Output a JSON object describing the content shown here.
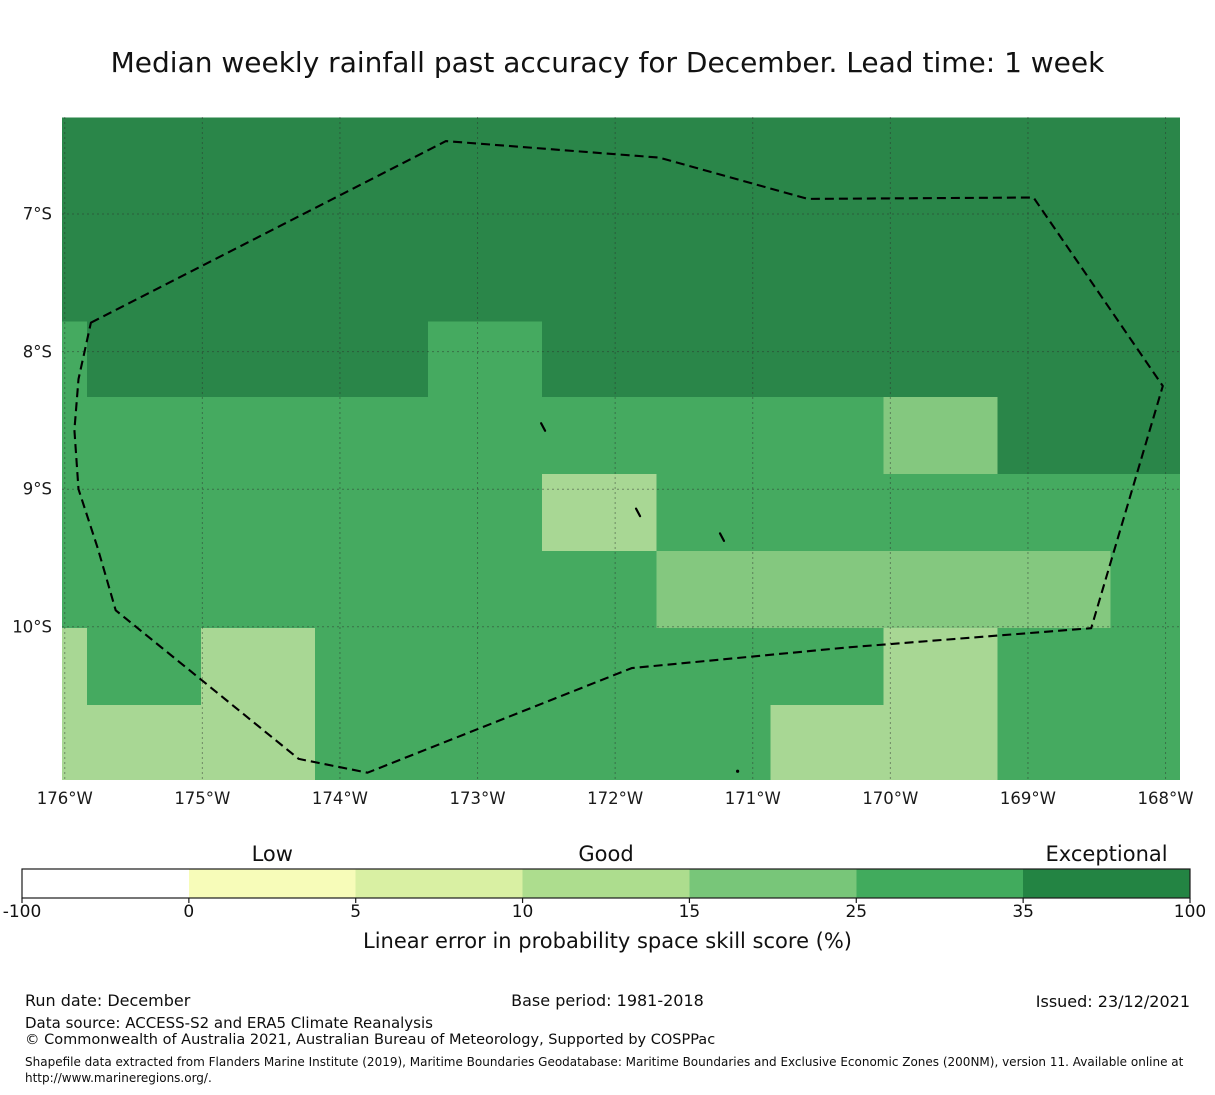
{
  "title": "Median weekly rainfall past accuracy for December. Lead time: 1 week",
  "chart_data": {
    "type": "heatmap",
    "title": "Median weekly rainfall past accuracy for December. Lead time: 1 week",
    "map": {
      "lon_extent_w": [
        176.02,
        167.9
      ],
      "lat_extent_s": [
        6.3,
        11.11
      ],
      "lon_cell_edges_w": [
        176.02,
        175.84,
        175.01,
        174.18,
        173.36,
        172.53,
        171.7,
        170.87,
        170.05,
        169.22,
        168.4,
        167.9
      ],
      "lat_cell_edges_s": [
        6.3,
        6.66,
        7.22,
        7.78,
        8.33,
        8.89,
        9.45,
        10.01,
        10.57,
        11.11
      ],
      "bin_rows": [
        "DDDDDDDDDDD",
        "DDDDDDDDDDD",
        "DDDDDDDDDDD",
        "MDDDMDDDDDD",
        "MMMMMMMMLDD",
        "MMMMMPMMMMM",
        "MMMMMMLLLLM",
        "PMPMMMMMPMM",
        "PPPMMMMPPMM"
      ],
      "bin_value_ranges": {
        "D": "35 to 100",
        "M": "25 to 35",
        "L": "15 to 25",
        "P": "10 to 15"
      },
      "map_palette": {
        "D": "#2a8649",
        "M": "#45aa60",
        "L": "#84c87f",
        "P": "#a8d794"
      },
      "eez_boundary_lonw_lats": [
        [
          175.81,
          7.79
        ],
        [
          173.23,
          6.47
        ],
        [
          171.68,
          6.59
        ],
        [
          170.6,
          6.89
        ],
        [
          168.96,
          6.88
        ],
        [
          168.02,
          8.25
        ],
        [
          168.54,
          10.01
        ],
        [
          170.31,
          10.15
        ],
        [
          171.88,
          10.3
        ],
        [
          173.8,
          11.06
        ],
        [
          174.3,
          10.96
        ],
        [
          175.63,
          9.88
        ],
        [
          175.76,
          9.43
        ],
        [
          175.9,
          9.0
        ],
        [
          175.93,
          8.57
        ],
        [
          175.9,
          8.2
        ]
      ],
      "islands": [
        {
          "lon_w": 172.52,
          "lat_s": 8.55,
          "mark": "dash"
        },
        {
          "lon_w": 171.83,
          "lat_s": 9.17,
          "mark": "dash"
        },
        {
          "lon_w": 171.22,
          "lat_s": 9.35,
          "mark": "dash"
        },
        {
          "lon_w": 171.11,
          "lat_s": 11.05,
          "mark": "dot"
        }
      ],
      "gridline_lons_w": [
        176,
        175,
        174,
        173,
        172,
        171,
        170,
        169,
        168
      ],
      "gridline_lats_s": [
        7,
        8,
        9,
        10
      ],
      "x_ticks": [
        {
          "label": "176°W",
          "lon_w": 176
        },
        {
          "label": "175°W",
          "lon_w": 175
        },
        {
          "label": "174°W",
          "lon_w": 174
        },
        {
          "label": "173°W",
          "lon_w": 173
        },
        {
          "label": "172°W",
          "lon_w": 172
        },
        {
          "label": "171°W",
          "lon_w": 171
        },
        {
          "label": "170°W",
          "lon_w": 170
        },
        {
          "label": "169°W",
          "lon_w": 169
        },
        {
          "label": "168°W",
          "lon_w": 168
        }
      ],
      "y_ticks": [
        {
          "label": "7°S",
          "lat_s": 7
        },
        {
          "label": "8°S",
          "lat_s": 8
        },
        {
          "label": "9°S",
          "lat_s": 9
        },
        {
          "label": "10°S",
          "lat_s": 10
        }
      ]
    },
    "colorbar": {
      "tick_labels": [
        "-100",
        "0",
        "5",
        "10",
        "15",
        "25",
        "35",
        "100"
      ],
      "boundaries": [
        -100,
        0,
        5,
        10,
        15,
        25,
        35,
        100
      ],
      "segment_colors": [
        "#ffffff",
        "#f7fcb9",
        "#d9f0a3",
        "#addd8e",
        "#78c679",
        "#41ab5d",
        "#238443"
      ],
      "quality_labels": [
        {
          "text": "Low",
          "segment_index": 1
        },
        {
          "text": "Good",
          "segment_index": 3
        },
        {
          "text": "Exceptional",
          "segment_index": 6
        }
      ],
      "xlabel": "Linear error in probability space skill score (%)"
    }
  },
  "footer": {
    "run_date": "Run date: December",
    "base_period": "Base period: 1981-2018",
    "issued": "Issued: 23/12/2021",
    "data_source": "Data source: ACCESS-S2 and ERA5 Climate Reanalysis",
    "copyright": "© Commonwealth of Australia 2021, Australian Bureau of Meteorology, Supported by COSPPac",
    "shapefile_note": "Shapefile data extracted from Flanders Marine Institute (2019), Maritime Boundaries Geodatabase: Maritime Boundaries and Exclusive Economic Zones (200NM), version 11. Available online at http://www.marineregions.org/."
  }
}
